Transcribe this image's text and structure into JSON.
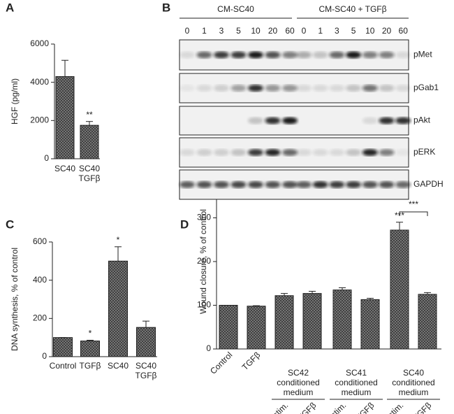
{
  "chart_data": [
    {
      "type": "bar",
      "label": "A",
      "ylabel": "HGF (pg/ml)",
      "categories": [
        "SC40",
        "SC40 TGFβ"
      ],
      "values": [
        4300,
        1750
      ],
      "errors": [
        850,
        200
      ],
      "annotations": [
        null,
        "**"
      ],
      "color": "#555555",
      "ylim": [
        0,
        6000
      ],
      "yticks": [
        0,
        2000,
        4000,
        6000
      ]
    },
    {
      "type": "bar",
      "label": "C",
      "ylabel": "DNA synthesis, % of control",
      "categories": [
        "Control",
        "TGFβ",
        "SC40",
        "SC40 TGFβ"
      ],
      "values": [
        100,
        82,
        500,
        153
      ],
      "errors": [
        0,
        4,
        75,
        33
      ],
      "annotations": [
        null,
        "*",
        "*",
        null
      ],
      "color": "#555555",
      "ylim": [
        0,
        600
      ],
      "yticks": [
        0,
        200,
        400,
        600
      ]
    },
    {
      "type": "bar",
      "label": "D",
      "ylabel": "Wound closure, % of control",
      "categories": [
        "Control",
        "TGFβ",
        "Unstim.",
        "TGFβ",
        "Unstim.",
        "TGFβ",
        "Unstim.",
        "TGFβ"
      ],
      "values": [
        100,
        98,
        122,
        127,
        135,
        113,
        272,
        125
      ],
      "errors": [
        0,
        1,
        5,
        5,
        5,
        3,
        18,
        4
      ],
      "annotations": [
        null,
        null,
        null,
        null,
        null,
        null,
        "***",
        null
      ],
      "groups": [
        "SC42 conditioned medium",
        "SC41 conditioned medium",
        "SC40 conditioned medium"
      ],
      "bracket_label": "***",
      "color": "#555555",
      "ylim": [
        0,
        400
      ],
      "yticks": [
        0,
        100,
        200,
        300,
        400
      ]
    }
  ],
  "blot": {
    "label": "B",
    "groups": [
      "CM-SC40",
      "CM-SC40 + TGFβ"
    ],
    "timepoints": [
      "0",
      "1",
      "3",
      "5",
      "10",
      "20",
      "60"
    ],
    "proteins": [
      "pMet",
      "pGab1",
      "pAkt",
      "pERK",
      "GAPDH"
    ]
  }
}
